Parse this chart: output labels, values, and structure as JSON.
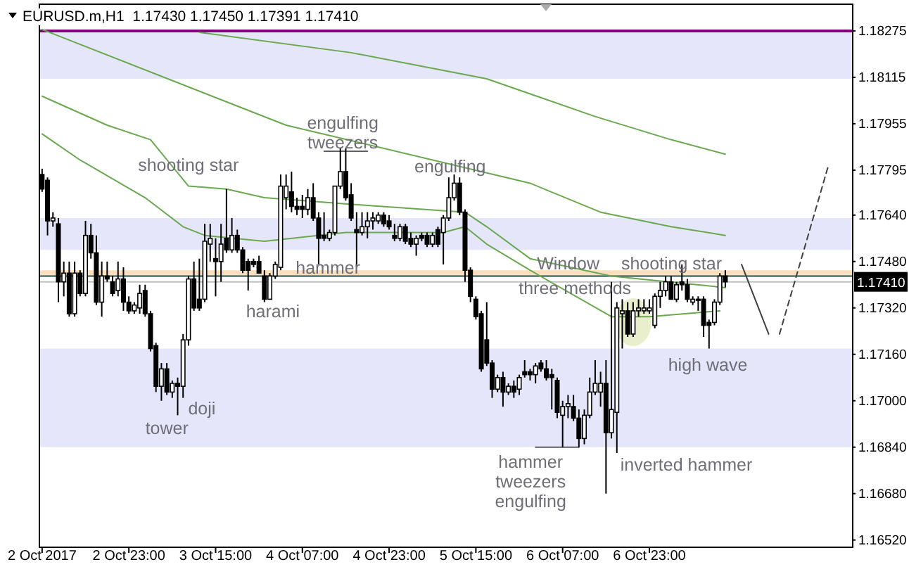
{
  "chart_data": {
    "type": "candlestick",
    "title": "EURUSD.m,H1  1.17430 1.17450 1.17391 1.17410",
    "categories": [
      "2 Oct 2017",
      null,
      null,
      null,
      null,
      null,
      null,
      null,
      null,
      null,
      null,
      null,
      null,
      null,
      null,
      null,
      "2 Oct 23:00",
      null,
      null,
      null,
      null,
      null,
      null,
      null,
      null,
      null,
      null,
      null,
      null,
      null,
      null,
      null,
      "3 Oct 15:00",
      null,
      null,
      null,
      null,
      null,
      null,
      null,
      null,
      null,
      null,
      null,
      null,
      null,
      null,
      null,
      "4 Oct 07:00",
      null,
      null,
      null,
      null,
      null,
      null,
      null,
      null,
      null,
      null,
      null,
      null,
      null,
      null,
      null,
      "4 Oct 23:00",
      null,
      null,
      null,
      null,
      null,
      null,
      null,
      null,
      null,
      null,
      null,
      null,
      null,
      null,
      null,
      "5 Oct 15:00",
      null,
      null,
      null,
      null,
      null,
      null,
      null,
      null,
      null,
      null,
      null,
      null,
      null,
      null,
      null,
      "6 Oct 07:00",
      null,
      null,
      null,
      null,
      null,
      null,
      null,
      null,
      null,
      null,
      null,
      null,
      null,
      null,
      null,
      "6 Oct 23:00",
      null,
      null,
      null,
      null,
      null,
      null,
      null,
      null,
      null,
      null,
      null,
      null,
      null,
      null,
      null,
      null,
      null,
      null,
      null,
      null,
      null,
      null,
      null,
      null,
      null,
      null,
      null,
      null,
      null,
      null,
      null,
      null,
      null,
      null,
      null,
      null,
      null
    ],
    "ohlc": [
      [
        1.1778,
        1.178,
        1.1772,
        1.1773
      ],
      [
        1.1776,
        1.1777,
        1.1757,
        1.1762
      ],
      [
        1.1762,
        1.1765,
        1.176,
        1.1763
      ],
      [
        1.1761,
        1.1763,
        1.1734,
        1.1741
      ],
      [
        1.1741,
        1.1748,
        1.1736,
        1.1744
      ],
      [
        1.1744,
        1.1748,
        1.1729,
        1.173
      ],
      [
        1.173,
        1.1748,
        1.1729,
        1.1744
      ],
      [
        1.1744,
        1.1745,
        1.1736,
        1.1737
      ],
      [
        1.1737,
        1.1762,
        1.1736,
        1.1757
      ],
      [
        1.1757,
        1.1761,
        1.1749,
        1.1751
      ],
      [
        1.1751,
        1.1757,
        1.1733,
        1.1734
      ],
      [
        1.1734,
        1.1748,
        1.1729,
        1.1743
      ],
      [
        1.1743,
        1.1748,
        1.1741,
        1.1742
      ],
      [
        1.1741,
        1.1743,
        1.1736,
        1.1737
      ],
      [
        1.1738,
        1.1748,
        1.1736,
        1.1742
      ],
      [
        1.1742,
        1.1746,
        1.1731,
        1.1734
      ],
      [
        1.1734,
        1.1736,
        1.173,
        1.1731
      ],
      [
        1.1731,
        1.1734,
        1.173,
        1.1733
      ],
      [
        1.1732,
        1.174,
        1.173,
        1.1737
      ],
      [
        1.1738,
        1.174,
        1.1729,
        1.173
      ],
      [
        1.173,
        1.1731,
        1.1717,
        1.1718
      ],
      [
        1.1719,
        1.172,
        1.1703,
        1.1705
      ],
      [
        1.1705,
        1.1713,
        1.17,
        1.1711
      ],
      [
        1.1711,
        1.1713,
        1.1702,
        1.1703
      ],
      [
        1.1703,
        1.1707,
        1.1701,
        1.1706
      ],
      [
        1.1706,
        1.1708,
        1.1695,
        1.1705
      ],
      [
        1.1705,
        1.1723,
        1.1701,
        1.1721
      ],
      [
        1.1721,
        1.1743,
        1.1719,
        1.1742
      ],
      [
        1.1742,
        1.1748,
        1.1731,
        1.1732
      ],
      [
        1.1735,
        1.1749,
        1.1731,
        1.1732
      ],
      [
        1.1735,
        1.1761,
        1.1734,
        1.1755
      ],
      [
        1.1754,
        1.1761,
        1.1748,
        1.1756
      ],
      [
        1.1749,
        1.1756,
        1.1736,
        1.1748
      ],
      [
        1.1748,
        1.1761,
        1.1741,
        1.1754
      ],
      [
        1.1756,
        1.1773,
        1.1751,
        1.1752
      ],
      [
        1.1752,
        1.1763,
        1.1751,
        1.1757
      ],
      [
        1.1757,
        1.1759,
        1.1751,
        1.1752
      ],
      [
        1.1752,
        1.1753,
        1.1744,
        1.1745
      ],
      [
        1.1748,
        1.1749,
        1.1738,
        1.1745
      ],
      [
        1.1748,
        1.1749,
        1.1746,
        1.1747
      ],
      [
        1.1748,
        1.175,
        1.1744,
        1.1744
      ],
      [
        1.1743,
        1.1745,
        1.1734,
        1.1735
      ],
      [
        1.1735,
        1.1744,
        1.1735,
        1.1743
      ],
      [
        1.1743,
        1.1748,
        1.1742,
        1.1747
      ],
      [
        1.1746,
        1.1778,
        1.1745,
        1.1774
      ],
      [
        1.177,
        1.1778,
        1.1766,
        1.1774
      ],
      [
        1.1772,
        1.1779,
        1.1765,
        1.1767
      ],
      [
        1.1767,
        1.177,
        1.1764,
        1.1766
      ],
      [
        1.1767,
        1.1771,
        1.1763,
        1.1766
      ],
      [
        1.1766,
        1.1773,
        1.1764,
        1.177
      ],
      [
        1.177,
        1.1775,
        1.1762,
        1.1763
      ],
      [
        1.1763,
        1.1765,
        1.1747,
        1.1756
      ],
      [
        1.1757,
        1.1765,
        1.1755,
        1.1756
      ],
      [
        1.1756,
        1.1759,
        1.1755,
        1.1758
      ],
      [
        1.1758,
        1.1774,
        1.1757,
        1.1774
      ],
      [
        1.1774,
        1.1787,
        1.1773,
        1.1779
      ],
      [
        1.1779,
        1.1787,
        1.1769,
        1.177
      ],
      [
        1.1771,
        1.1775,
        1.1762,
        1.1763
      ],
      [
        1.1759,
        1.1765,
        1.1746,
        1.1758
      ],
      [
        1.1758,
        1.1765,
        1.1757,
        1.176
      ],
      [
        1.176,
        1.1765,
        1.1756,
        1.1762
      ],
      [
        1.1762,
        1.1765,
        1.1759,
        1.1763
      ],
      [
        1.1762,
        1.1765,
        1.1761,
        1.1764
      ],
      [
        1.1764,
        1.1765,
        1.176,
        1.1761
      ],
      [
        1.1762,
        1.1764,
        1.1759,
        1.176
      ],
      [
        1.1757,
        1.1761,
        1.1755,
        1.1756
      ],
      [
        1.1756,
        1.1761,
        1.1755,
        1.176
      ],
      [
        1.176,
        1.1761,
        1.1754,
        1.1755
      ],
      [
        1.1756,
        1.1758,
        1.1753,
        1.1754
      ],
      [
        1.1754,
        1.1757,
        1.175,
        1.1756
      ],
      [
        1.1757,
        1.1758,
        1.1755,
        1.1756
      ],
      [
        1.1757,
        1.1758,
        1.1753,
        1.1754
      ],
      [
        1.1754,
        1.1758,
        1.1753,
        1.1757
      ],
      [
        1.1759,
        1.176,
        1.1753,
        1.1754
      ],
      [
        1.1758,
        1.1764,
        1.1747,
        1.1763
      ],
      [
        1.1763,
        1.1777,
        1.1762,
        1.177
      ],
      [
        1.177,
        1.1778,
        1.1769,
        1.1775
      ],
      [
        1.1775,
        1.1777,
        1.1764,
        1.1765
      ],
      [
        1.1765,
        1.1766,
        1.1741,
        1.1745
      ],
      [
        1.1745,
        1.1746,
        1.1734,
        1.1736
      ],
      [
        1.1735,
        1.1736,
        1.1728,
        1.1729
      ],
      [
        1.173,
        1.1731,
        1.171,
        1.1711
      ],
      [
        1.1721,
        1.1734,
        1.1712,
        1.1713
      ],
      [
        1.1713,
        1.1714,
        1.1701,
        1.1704
      ],
      [
        1.1704,
        1.1709,
        1.1703,
        1.1708
      ],
      [
        1.1708,
        1.171,
        1.1698,
        1.1703
      ],
      [
        1.1703,
        1.1706,
        1.1702,
        1.1705
      ],
      [
        1.1705,
        1.1707,
        1.1701,
        1.1703
      ],
      [
        1.1704,
        1.1709,
        1.1702,
        1.1708
      ],
      [
        1.171,
        1.1714,
        1.1708,
        1.1709
      ],
      [
        1.171,
        1.1711,
        1.1707,
        1.1709
      ],
      [
        1.1709,
        1.1713,
        1.1706,
        1.1712
      ],
      [
        1.1713,
        1.1714,
        1.171,
        1.1711
      ],
      [
        1.1711,
        1.1714,
        1.1707,
        1.1708
      ],
      [
        1.1709,
        1.1711,
        1.1697,
        1.1708
      ],
      [
        1.1707,
        1.1708,
        1.1694,
        1.1696
      ],
      [
        1.1695,
        1.17,
        1.1684,
        1.1698
      ],
      [
        1.1698,
        1.1702,
        1.1694,
        1.1699
      ],
      [
        1.1698,
        1.1702,
        1.1693,
        1.1694
      ],
      [
        1.1694,
        1.1697,
        1.1684,
        1.1687
      ],
      [
        1.1687,
        1.1697,
        1.1685,
        1.1695
      ],
      [
        1.1695,
        1.1708,
        1.1694,
        1.1703
      ],
      [
        1.1703,
        1.1714,
        1.1702,
        1.1706
      ],
      [
        1.1703,
        1.171,
        1.1698,
        1.1706
      ],
      [
        1.1706,
        1.1714,
        1.1668,
        1.1689
      ],
      [
        1.1689,
        1.1741,
        1.1687,
        1.1697
      ],
      [
        1.1696,
        1.1734,
        1.1682,
        1.1732
      ],
      [
        1.173,
        1.1735,
        1.1718,
        1.1731
      ],
      [
        1.1731,
        1.1734,
        1.1722,
        1.1723
      ],
      [
        1.1723,
        1.1734,
        1.1722,
        1.1731
      ],
      [
        1.1731,
        1.1735,
        1.1729,
        1.1732
      ],
      [
        1.1731,
        1.1735,
        1.173,
        1.1732
      ],
      [
        1.1731,
        1.1735,
        1.173,
        1.1732
      ],
      [
        1.1726,
        1.1737,
        1.1725,
        1.1736
      ],
      [
        1.1736,
        1.1741,
        1.1732,
        1.1738
      ],
      [
        1.1738,
        1.1743,
        1.1736,
        1.1741
      ],
      [
        1.1741,
        1.1743,
        1.1735,
        1.1735
      ],
      [
        1.1735,
        1.1741,
        1.1734,
        1.174
      ],
      [
        1.1741,
        1.1747,
        1.1738,
        1.174
      ],
      [
        1.174,
        1.1742,
        1.1734,
        1.1735
      ],
      [
        1.1734,
        1.1736,
        1.1733,
        1.1735
      ],
      [
        1.1735,
        1.1736,
        1.1731,
        1.1735
      ],
      [
        1.1735,
        1.1736,
        1.1722,
        1.1726
      ],
      [
        1.1727,
        1.1728,
        1.1718,
        1.1726
      ],
      [
        1.1727,
        1.1735,
        1.1726,
        1.1734
      ],
      [
        1.1734,
        1.1744,
        1.1733,
        1.1743
      ],
      [
        1.1743,
        1.1745,
        1.17391,
        1.1741
      ],
      null,
      null,
      null,
      null,
      null,
      null,
      null,
      null,
      null,
      null,
      null,
      null,
      null,
      null,
      null,
      null,
      null,
      null,
      null,
      null,
      null,
      null,
      null
    ],
    "series": [
      {
        "type": "line",
        "color": "#6aa84f",
        "values": [
          null,
          null,
          null,
          null,
          null,
          null,
          null,
          null,
          null,
          null,
          null,
          null,
          null,
          null,
          null,
          null,
          null,
          null,
          null,
          null,
          null,
          null,
          null,
          null,
          null,
          null,
          null,
          null,
          null,
          1.1827,
          null,
          null,
          null,
          null,
          null,
          null,
          null,
          null,
          null,
          null,
          null,
          null,
          null,
          null,
          null,
          null,
          null,
          null,
          null,
          null,
          null,
          null,
          null,
          null,
          null,
          null,
          null,
          1.182,
          null,
          null,
          null,
          null,
          null,
          null,
          null,
          null,
          null,
          null,
          null,
          null,
          null,
          null,
          null,
          null,
          null,
          null,
          null,
          null,
          null,
          null,
          null,
          null,
          1.1811,
          null,
          null,
          null,
          null,
          null,
          null,
          null,
          null,
          null,
          null,
          null,
          null,
          null,
          null,
          null,
          null,
          null,
          null,
          null,
          1.1798,
          null,
          null,
          null,
          null,
          null,
          null,
          null,
          null,
          null,
          null,
          null,
          null,
          null,
          1.179,
          null,
          null,
          null,
          null,
          null,
          null,
          null,
          null,
          null,
          1.1785,
          null,
          null,
          null,
          null,
          null,
          null,
          null,
          null,
          null,
          null,
          null,
          null,
          null,
          null,
          null,
          null,
          null,
          null,
          null,
          null,
          null,
          null,
          null
        ]
      },
      {
        "type": "line",
        "color": "#6aa84f",
        "values": [
          1.1828,
          null,
          null,
          null,
          null,
          null,
          null,
          null,
          null,
          null,
          null,
          null,
          null,
          null,
          null,
          null,
          null,
          null,
          null,
          null,
          null,
          null,
          null,
          null,
          null,
          null,
          null,
          null,
          null,
          null,
          null,
          null,
          null,
          null,
          null,
          null,
          null,
          null,
          null,
          null,
          null,
          null,
          null,
          null,
          null,
          1.1795,
          null,
          null,
          null,
          null,
          null,
          null,
          null,
          null,
          null,
          null,
          null,
          null,
          null,
          null,
          null,
          null,
          null,
          null,
          null,
          null,
          null,
          null,
          null,
          null,
          null,
          null,
          null,
          null,
          null,
          null,
          null,
          null,
          null,
          null,
          null,
          null,
          null,
          null,
          null,
          null,
          null,
          null,
          null,
          null,
          1.1775,
          null,
          null,
          null,
          null,
          null,
          null,
          null,
          null,
          null,
          null,
          null,
          null,
          1.1765,
          null,
          null,
          null,
          null,
          null,
          null,
          null,
          null,
          null,
          null,
          null,
          null,
          1.176,
          null,
          null,
          null,
          null,
          null,
          null,
          null,
          null,
          null,
          1.1757,
          null,
          null,
          null,
          null,
          null,
          null,
          null,
          null,
          null,
          null,
          null,
          null,
          null,
          null,
          null,
          null,
          null,
          null,
          null,
          null,
          null,
          null,
          null
        ]
      },
      {
        "type": "line",
        "color": "#6aa84f",
        "values": [
          1.1805,
          null,
          null,
          null,
          null,
          null,
          null,
          null,
          null,
          null,
          null,
          null,
          1.1795,
          null,
          null,
          null,
          null,
          null,
          null,
          null,
          1.179,
          null,
          null,
          null,
          null,
          null,
          null,
          1.1774,
          null,
          null,
          null,
          null,
          null,
          null,
          1.1773,
          null,
          null,
          null,
          null,
          null,
          null,
          1.177,
          null,
          null,
          null,
          null,
          null,
          null,
          null,
          null,
          null,
          null,
          null,
          null,
          null,
          1.1768,
          null,
          null,
          null,
          null,
          null,
          null,
          null,
          null,
          null,
          null,
          null,
          null,
          null,
          null,
          null,
          null,
          null,
          null,
          null,
          null,
          null,
          null,
          1.1765,
          null,
          null,
          null,
          1.176,
          null,
          null,
          null,
          null,
          null,
          null,
          null,
          1.1749,
          null,
          null,
          null,
          null,
          null,
          null,
          null,
          null,
          null,
          null,
          null,
          null,
          null,
          null,
          1.1743,
          null,
          null,
          null,
          null,
          null,
          null,
          null,
          null,
          null,
          null,
          null,
          null,
          null,
          null,
          null,
          null,
          null,
          null,
          null,
          null,
          1.1739,
          null,
          null,
          null,
          null,
          null,
          null,
          null,
          null,
          null,
          null,
          null,
          null,
          null,
          null,
          null,
          null,
          null,
          null,
          null,
          null,
          null,
          null,
          null
        ]
      },
      {
        "type": "line",
        "color": "#6aa84f",
        "values": [
          1.1792,
          null,
          null,
          null,
          null,
          null,
          null,
          1.1783,
          null,
          null,
          null,
          null,
          null,
          null,
          null,
          null,
          null,
          null,
          null,
          1.177,
          null,
          null,
          null,
          null,
          null,
          null,
          1.176,
          null,
          null,
          null,
          1.1757,
          null,
          null,
          null,
          null,
          null,
          null,
          null,
          null,
          null,
          null,
          1.1755,
          null,
          null,
          null,
          null,
          null,
          null,
          null,
          null,
          null,
          null,
          null,
          null,
          null,
          null,
          1.1758,
          null,
          null,
          null,
          null,
          null,
          null,
          null,
          null,
          null,
          null,
          null,
          null,
          null,
          null,
          null,
          null,
          null,
          1.1758,
          null,
          null,
          null,
          1.176,
          null,
          null,
          null,
          1.1754,
          null,
          null,
          null,
          null,
          null,
          null,
          null,
          1.1745,
          null,
          null,
          null,
          null,
          null,
          null,
          null,
          null,
          null,
          null,
          null,
          null,
          null,
          null,
          1.1729,
          null,
          null,
          null,
          null,
          null,
          null,
          1.1729,
          null,
          null,
          null,
          null,
          null,
          null,
          null,
          null,
          null,
          null,
          null,
          null,
          1.1731,
          null,
          null,
          null,
          null,
          null,
          null,
          null,
          null,
          null,
          null,
          null,
          null,
          null,
          null,
          null,
          null,
          null,
          null,
          null,
          null,
          null,
          null,
          null,
          null
        ]
      },
      {
        "type": "line",
        "color": "#404040",
        "values": [
          null,
          null,
          null,
          null,
          null,
          null,
          null,
          null,
          null,
          null,
          null,
          null,
          null,
          null,
          null,
          null,
          null,
          null,
          null,
          null,
          null,
          null,
          null,
          null,
          null,
          null,
          null,
          null,
          null,
          null,
          null,
          null,
          null,
          null,
          null,
          null,
          null,
          null,
          null,
          null,
          null,
          null,
          null,
          null,
          null,
          null,
          null,
          null,
          null,
          null,
          null,
          null,
          null,
          null,
          null,
          null,
          null,
          null,
          null,
          null,
          null,
          null,
          null,
          null,
          null,
          null,
          null,
          null,
          null,
          null,
          null,
          null,
          null,
          null,
          null,
          null,
          null,
          null,
          null,
          null,
          null,
          null,
          null,
          null,
          null,
          null,
          null,
          null,
          null,
          null,
          null,
          null,
          null,
          null,
          null,
          null,
          null,
          null,
          null,
          null,
          null,
          null,
          null,
          null,
          null,
          null,
          null,
          null,
          null,
          null,
          null,
          null,
          null,
          null,
          null,
          null,
          null,
          null,
          null,
          null,
          null,
          null,
          null,
          null,
          null,
          null,
          null,
          null,
          null,
          1.1747,
          null,
          null,
          null,
          null,
          1.1723,
          null,
          null,
          null,
          null,
          null,
          null,
          null,
          null,
          null,
          null,
          null,
          null,
          null,
          null,
          null
        ]
      },
      {
        "type": "line",
        "color": "#404040",
        "line_style": "dashed",
        "values": [
          null,
          null,
          null,
          null,
          null,
          null,
          null,
          null,
          null,
          null,
          null,
          null,
          null,
          null,
          null,
          null,
          null,
          null,
          null,
          null,
          null,
          null,
          null,
          null,
          null,
          null,
          null,
          null,
          null,
          null,
          null,
          null,
          null,
          null,
          null,
          null,
          null,
          null,
          null,
          null,
          null,
          null,
          null,
          null,
          null,
          null,
          null,
          null,
          null,
          null,
          null,
          null,
          null,
          null,
          null,
          null,
          null,
          null,
          null,
          null,
          null,
          null,
          null,
          null,
          null,
          null,
          null,
          null,
          null,
          null,
          null,
          null,
          null,
          null,
          null,
          null,
          null,
          null,
          null,
          null,
          null,
          null,
          null,
          null,
          null,
          null,
          null,
          null,
          null,
          null,
          null,
          null,
          null,
          null,
          null,
          null,
          null,
          null,
          null,
          null,
          null,
          null,
          null,
          null,
          null,
          null,
          null,
          null,
          null,
          null,
          null,
          null,
          null,
          null,
          null,
          null,
          null,
          null,
          null,
          null,
          null,
          null,
          null,
          null,
          null,
          null,
          null,
          null,
          null,
          null,
          null,
          null,
          null,
          null,
          null,
          null,
          1.1723,
          null,
          null,
          null,
          null,
          null,
          null,
          null,
          null,
          1.1781,
          null,
          null,
          null,
          null
        ]
      },
      {
        "type": "line",
        "color": "#606060",
        "values": [
          null,
          null,
          null,
          null,
          null,
          null,
          null,
          null,
          null,
          null,
          null,
          null,
          null,
          null,
          null,
          null,
          null,
          null,
          null,
          null,
          null,
          null,
          null,
          null,
          null,
          null,
          null,
          null,
          null,
          null,
          null,
          null,
          null,
          null,
          null,
          null,
          null,
          null,
          null,
          null,
          null,
          null,
          null,
          null,
          null,
          null,
          null,
          null,
          null,
          null,
          null,
          null,
          1.1786,
          1.1786,
          1.1786,
          1.1786,
          1.1786,
          1.1786,
          1.1786,
          1.1786,
          1.1786,
          null,
          null,
          null,
          null,
          null,
          null,
          null,
          null,
          null,
          null,
          null,
          null,
          null,
          null,
          null,
          null,
          null,
          null,
          null,
          null,
          null,
          null,
          null,
          null,
          null,
          null,
          null,
          null,
          null,
          null,
          null,
          null,
          null,
          null,
          null,
          null,
          null,
          null,
          null,
          null,
          null,
          null,
          null,
          null,
          null,
          null,
          null,
          null,
          null,
          null,
          null,
          null,
          null,
          null,
          null,
          null,
          null,
          null,
          null,
          null,
          null,
          null,
          null,
          null,
          null,
          null,
          null,
          null,
          null,
          null,
          null,
          null,
          null,
          null,
          null,
          null,
          null,
          null,
          null,
          null,
          null,
          null,
          null,
          null,
          null,
          null,
          null,
          null,
          null
        ]
      },
      {
        "type": "line",
        "color": "#606060",
        "values": [
          null,
          null,
          null,
          null,
          null,
          null,
          null,
          null,
          null,
          null,
          null,
          null,
          null,
          null,
          null,
          null,
          null,
          null,
          null,
          null,
          null,
          null,
          null,
          null,
          null,
          null,
          null,
          null,
          null,
          null,
          null,
          null,
          null,
          null,
          null,
          null,
          null,
          null,
          null,
          null,
          null,
          null,
          null,
          null,
          null,
          null,
          null,
          null,
          null,
          null,
          null,
          null,
          null,
          null,
          null,
          null,
          null,
          null,
          null,
          null,
          null,
          null,
          null,
          null,
          null,
          null,
          null,
          null,
          null,
          null,
          null,
          null,
          null,
          null,
          null,
          null,
          null,
          null,
          null,
          null,
          null,
          null,
          null,
          null,
          null,
          null,
          null,
          null,
          null,
          null,
          null,
          1.1684,
          1.1684,
          1.1684,
          1.1684,
          1.1684,
          1.1684,
          1.1684,
          1.1684,
          1.1684,
          null,
          null,
          null,
          null,
          null,
          null,
          null,
          null,
          null,
          null,
          null,
          null,
          null,
          null,
          null,
          null,
          null,
          null,
          null,
          null,
          null,
          null,
          null,
          null,
          null,
          null,
          null,
          null,
          null,
          null,
          null,
          null,
          null,
          null,
          null,
          null,
          null,
          null,
          null,
          null,
          null,
          null,
          null,
          null,
          null,
          null,
          null,
          null,
          null,
          null
        ]
      }
    ],
    "bands": [
      {
        "axis": "y",
        "from": 1.1811,
        "to": 1.18275,
        "color": "#e6e6fa"
      },
      {
        "axis": "y",
        "from": 1.1752,
        "to": 1.1763,
        "color": "#e6e6fa"
      },
      {
        "axis": "y",
        "from": 1.1684,
        "to": 1.1718,
        "color": "#e6e6fa"
      }
    ],
    "ref_lines": [
      {
        "axis": "y",
        "value": 1.18275,
        "color": "#800080"
      },
      {
        "axis": "y",
        "value": 1.1744,
        "color": "#f9dfbd"
      },
      {
        "axis": "y",
        "value": 1.1743,
        "color": "#2f4f4f"
      },
      {
        "axis": "y",
        "value": 1.1741,
        "label": "1.17410",
        "color": "#c0c0c0"
      }
    ],
    "annotations": [
      "shooting star",
      "tower",
      "doji",
      "harami",
      {
        "text": "hammer",
        "y": 1.1746
      },
      "engulfing",
      "tweezers",
      {
        "text": "engulfing",
        "y": 1.1781
      },
      "Window",
      {
        "text": "three methods",
        "y": 1.1739
      },
      "shooting star",
      "high wave",
      "hammer",
      "tweezers",
      "engulfing",
      "inverted hammer"
    ],
    "ylim": [
      1.16495,
      1.18367
    ],
    "yticks": [
      1.18275,
      1.18115,
      1.17955,
      1.17795,
      {
        "value": 1.1764,
        "label": "1.17640"
      },
      {
        "value": 1.1748,
        "label": "1.17480"
      },
      {
        "value": 1.1732,
        "label": "1.17320"
      },
      {
        "value": 1.1716,
        "label": "1.17160"
      },
      {
        "value": 1.17,
        "label": "1.17000"
      },
      {
        "value": 1.1684,
        "label": "1.16840"
      },
      {
        "value": 1.1668,
        "label": "1.16680"
      },
      {
        "value": 1.1652,
        "label": "1.16520"
      }
    ]
  }
}
